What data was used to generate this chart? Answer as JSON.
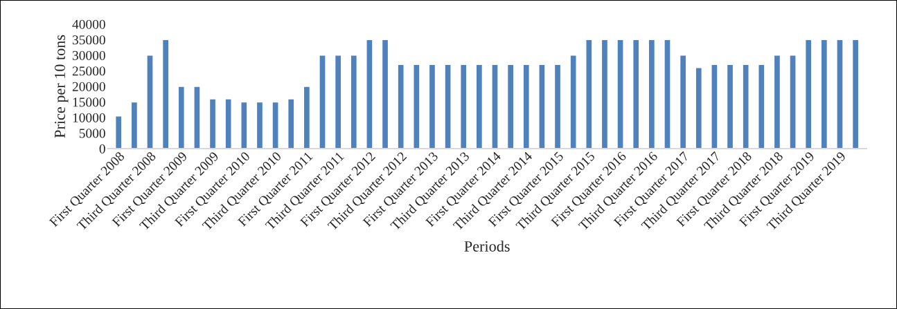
{
  "chart_data": {
    "type": "bar",
    "xlabel": "Periods",
    "ylabel": "Price per 10 tons",
    "categories": [
      "First Quarter 2008",
      null,
      "Third Quarter 2008",
      null,
      "First Quarter 2009",
      null,
      "Third Quarter 2009",
      null,
      "First Quarter 2010",
      null,
      "Third Quarter 2010",
      null,
      "First Quarter 2011",
      null,
      "Third Quarter 2011",
      null,
      "First Quarter 2012",
      null,
      "Third Quarter 2012",
      null,
      "First Quarter 2013",
      null,
      "Third Quarter 2013",
      null,
      "First Quarter 2014",
      null,
      "Third Quarter 2014",
      null,
      "First Quarter 2015",
      null,
      "Third Quarter 2015",
      null,
      "First Quarter 2016",
      null,
      "Third Quarter 2016",
      null,
      "First Quarter 2017",
      null,
      "Third Quarter 2017",
      null,
      "First Quarter 2018",
      null,
      "Third Quarter 2018",
      null,
      "First Quarter 2019",
      null,
      "Third Quarter 2019",
      null
    ],
    "values": [
      10500,
      15000,
      30000,
      35000,
      20000,
      20000,
      16000,
      16000,
      15000,
      15000,
      15000,
      16000,
      20000,
      30000,
      30000,
      30000,
      35000,
      35000,
      27000,
      27000,
      27000,
      27000,
      27000,
      27000,
      27000,
      27000,
      27000,
      27000,
      27000,
      30000,
      35000,
      35000,
      35000,
      35000,
      35000,
      35000,
      30000,
      26000,
      27000,
      27000,
      27000,
      27000,
      30000,
      30000,
      35000,
      35000,
      35000,
      35000
    ],
    "color": "#4f81bd",
    "ylim": [
      0,
      40000
    ],
    "yticks": [
      0,
      5000,
      10000,
      15000,
      20000,
      25000,
      30000,
      35000,
      40000
    ],
    "grid": false,
    "legend": false
  }
}
